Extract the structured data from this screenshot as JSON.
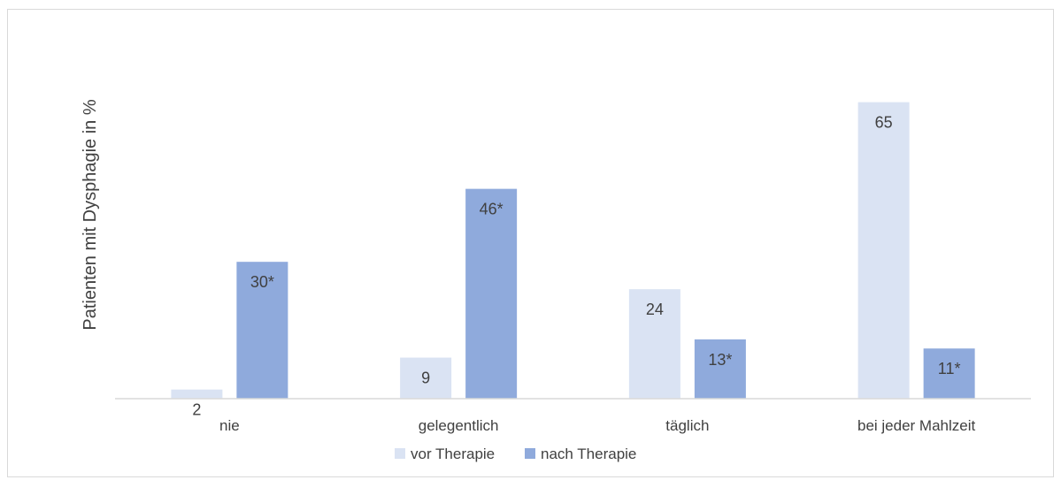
{
  "chart_data": {
    "type": "bar",
    "title": "",
    "xlabel": "",
    "ylabel": "Patienten mit Dysphagie in %",
    "ylim": [
      0,
      70
    ],
    "grid": false,
    "legend_position": "bottom",
    "categories": [
      "nie",
      "gelegentlich",
      "täglich",
      "bei jeder Mahlzeit"
    ],
    "series": [
      {
        "name": "vor Therapie",
        "color": "#dae3f3",
        "values": [
          2,
          9,
          24,
          65
        ],
        "labels": [
          "2",
          "9",
          "24",
          "65"
        ]
      },
      {
        "name": "nach Therapie",
        "color": "#8faadc",
        "values": [
          30,
          46,
          13,
          11
        ],
        "labels": [
          "30*",
          "46*",
          "13*",
          "11*"
        ]
      }
    ]
  }
}
